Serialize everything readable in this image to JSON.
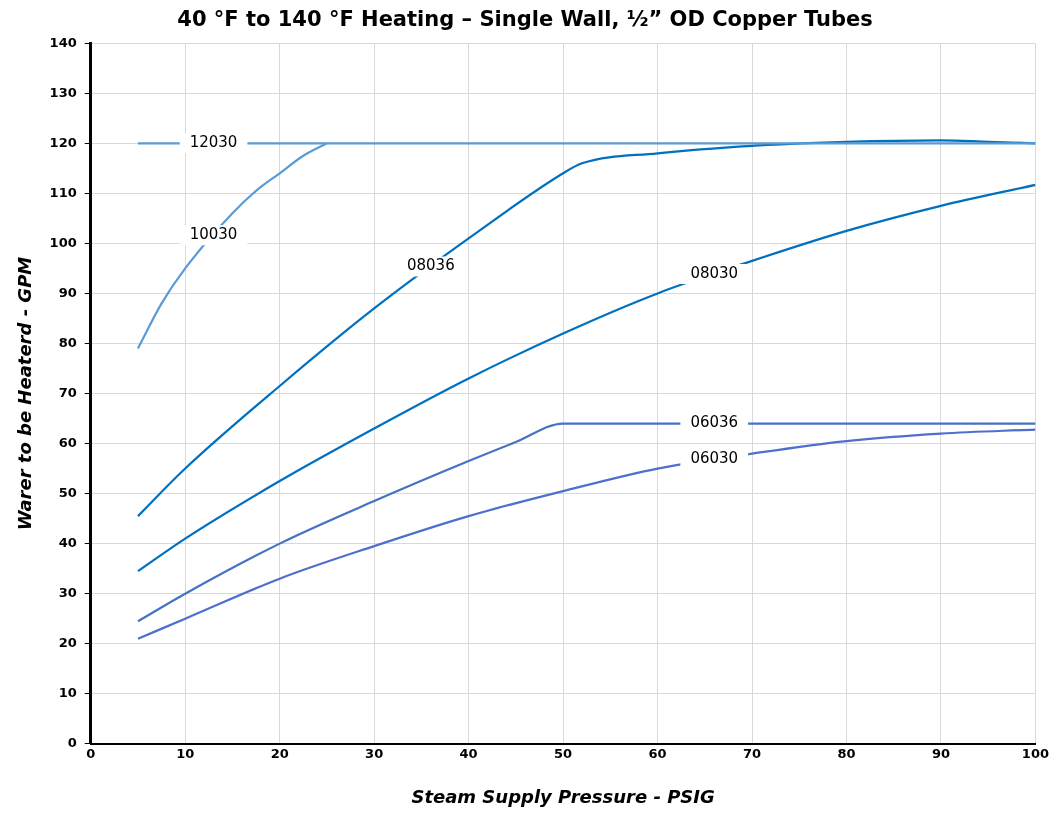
{
  "chart_data": {
    "type": "line",
    "title": "40 °F to 140 °F Heating – Single Wall, ½” OD Copper Tubes",
    "xlabel": "Steam Supply Pressure - PSIG",
    "ylabel": "Warer to be Heaterd - GPM",
    "xlim": [
      0,
      100
    ],
    "xticks": [
      0,
      10,
      20,
      30,
      40,
      50,
      60,
      70,
      80,
      90,
      100
    ],
    "ylim": [
      0,
      140
    ],
    "yticks": [
      0,
      10,
      20,
      30,
      40,
      50,
      60,
      70,
      80,
      90,
      100,
      110,
      120,
      130,
      140
    ],
    "grid": true,
    "legend": false,
    "marker": "none",
    "line_style": "solid",
    "series": [
      {
        "name": "12030",
        "color": "#5b9bd5",
        "x": [
          5,
          25,
          100
        ],
        "values": [
          120,
          120,
          120
        ]
      },
      {
        "name": "10030",
        "color": "#5b9bd5",
        "x": [
          5,
          7.5,
          10,
          15,
          17.5,
          20,
          22.5,
          25
        ],
        "values": [
          79,
          88,
          95,
          106,
          110.5,
          114,
          117.5,
          120
        ]
      },
      {
        "name": "08036",
        "color": "#0070c0",
        "x": [
          5,
          10,
          20,
          30,
          40,
          50,
          52,
          60,
          70,
          80,
          90,
          95,
          100
        ],
        "values": [
          45.5,
          55,
          71.5,
          87,
          101,
          114,
          116,
          118,
          119.5,
          120.3,
          120.6,
          120.3,
          120
        ]
      },
      {
        "name": "08030",
        "color": "#0070c0",
        "x": [
          5,
          10,
          20,
          30,
          40,
          50,
          60,
          70,
          80,
          90,
          100
        ],
        "values": [
          34.5,
          41,
          52.5,
          63,
          73,
          82,
          90,
          96.5,
          102.5,
          107.5,
          111.7
        ]
      },
      {
        "name": "06036",
        "color": "#4472c4",
        "x": [
          5,
          10,
          20,
          30,
          40,
          45,
          50,
          100
        ],
        "values": [
          24.5,
          30,
          40,
          48.5,
          56.5,
          60.3,
          64,
          64
        ]
      },
      {
        "name": "06030",
        "color": "#4f6fcf",
        "x": [
          5,
          10,
          20,
          30,
          40,
          50,
          60,
          70,
          80,
          90,
          100
        ],
        "values": [
          21,
          25,
          33,
          39.5,
          45.5,
          50.5,
          55,
          58,
          60.5,
          62,
          62.8
        ]
      }
    ]
  }
}
